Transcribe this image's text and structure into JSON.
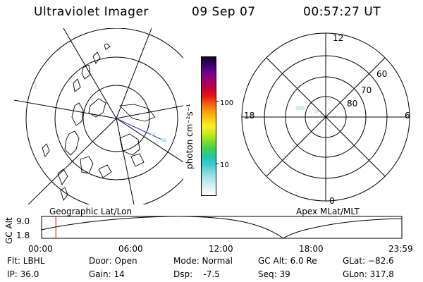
{
  "header": {
    "title": "Ultraviolet Imager",
    "date": "09 Sep 07",
    "time": "00:57:27 UT"
  },
  "colorbar": {
    "unit_label": "photon cm⁻²s⁻¹",
    "ticks": [
      "100",
      "10"
    ],
    "colors": [
      "#ffffff",
      "#dff3f3",
      "#b9e6e9",
      "#86d8df",
      "#3ccbd1",
      "#1ec6a8",
      "#3ccf5a",
      "#7edb2a",
      "#c8ea1c",
      "#f6f12a",
      "#f7c90d",
      "#f49b0c",
      "#ef5a0d",
      "#e11313",
      "#c5003d",
      "#9d006d",
      "#6f008f",
      "#3a0066",
      "#140029"
    ]
  },
  "left_panel": {
    "caption": "Geographic Lat/Lon"
  },
  "right_panel": {
    "caption": "Apex MLat/MLT",
    "mlt_labels": {
      "top": "12",
      "left": "18",
      "right": "6",
      "bottom": "0"
    },
    "lat_labels": [
      "60",
      "70",
      "80"
    ]
  },
  "altitude_plot": {
    "ylabel": "GC Alt",
    "yticks": [
      "9.0",
      "1.8"
    ],
    "xticks": [
      "00:00",
      "06:00",
      "12:00",
      "18:00",
      "23:59"
    ],
    "marker_time": "00:57",
    "marker_color": "#cc0000"
  },
  "status": {
    "flt": "Flt: LBHL",
    "ip": "IP: 36.0",
    "door": "Door: Open",
    "gain": "Gain: 14",
    "mode": "Mode: Normal",
    "dsp": "Dsp:    -7.5",
    "gc_alt": "GC Alt: 6.0 Re",
    "seq": "Seq: 39",
    "glat": "GLat: −82.6",
    "glon": "GLon: 317.8"
  }
}
